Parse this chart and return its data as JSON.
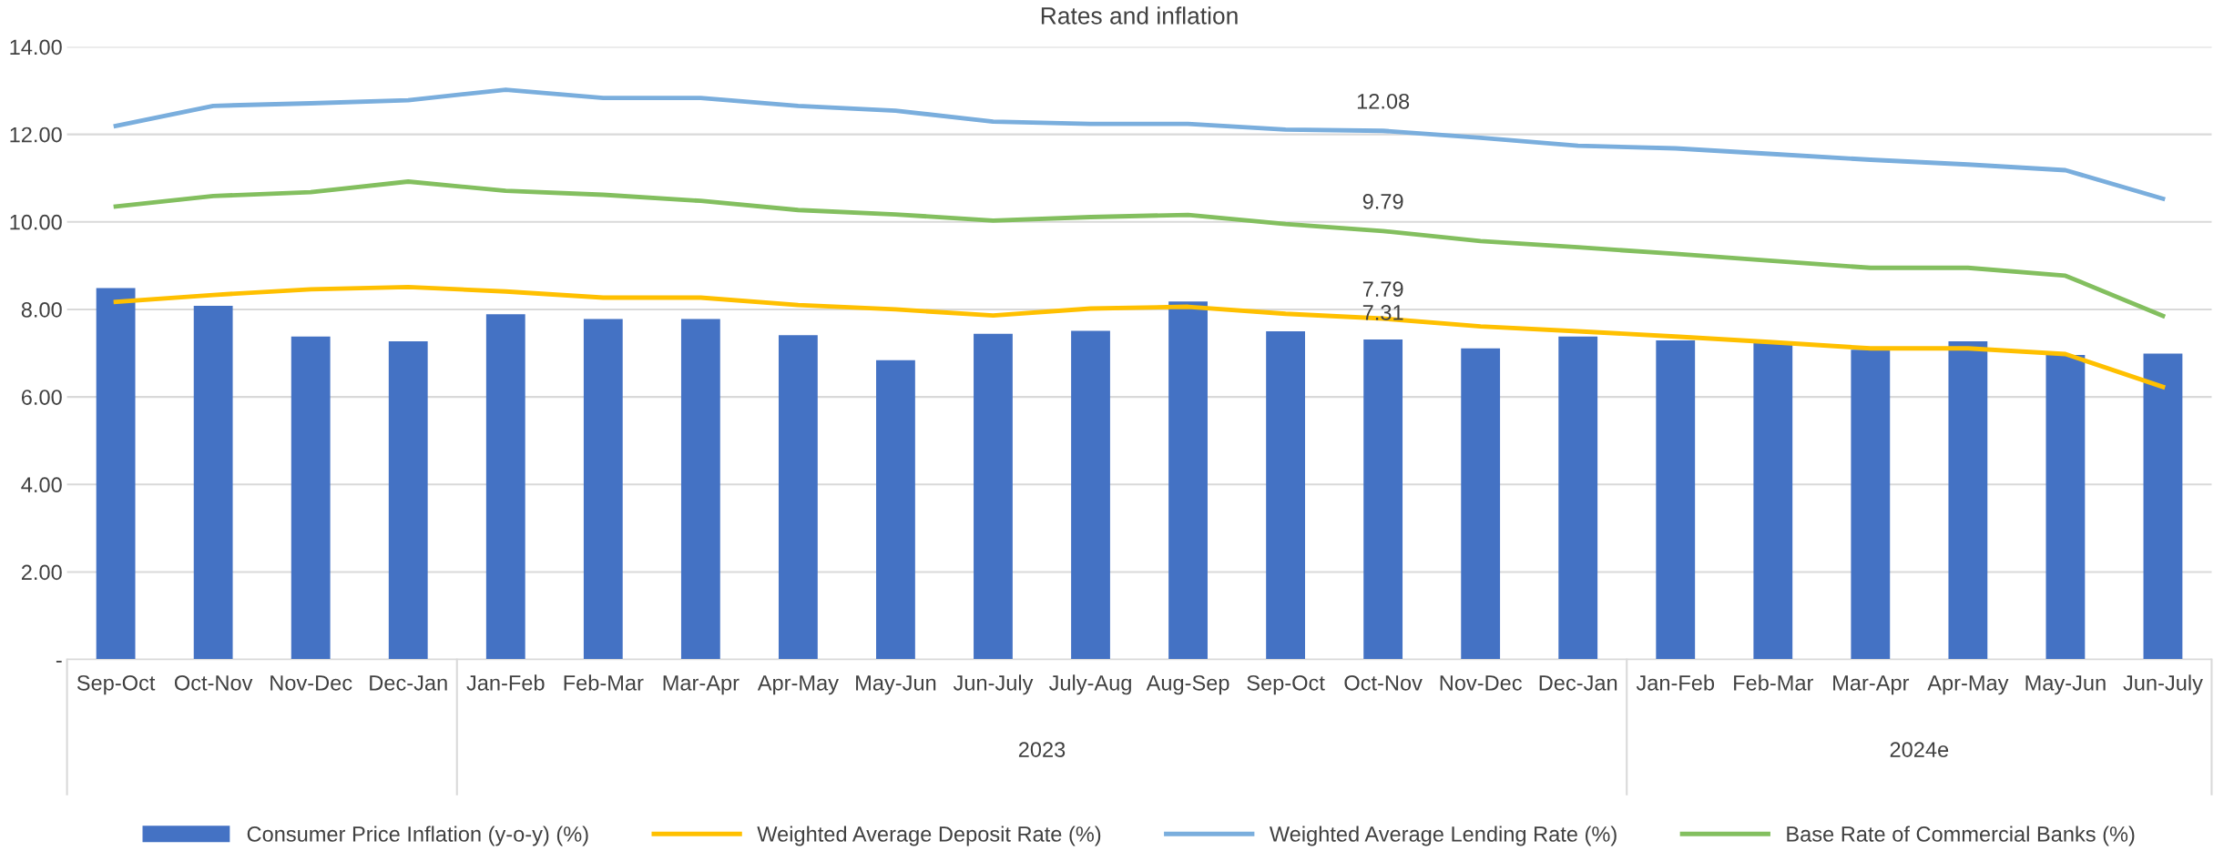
{
  "chart_data": {
    "type": "bar",
    "title": "Rates and inflation",
    "categories": [
      "Sep-Oct",
      "Oct-Nov",
      "Nov-Dec",
      "Dec-Jan",
      "Jan-Feb",
      "Feb-Mar",
      "Mar-Apr",
      "Apr-May",
      "May-Jun",
      "Jun-July",
      "July-Aug",
      "Aug-Sep",
      "Sep-Oct",
      "Oct-Nov",
      "Nov-Dec",
      "Dec-Jan",
      "Jan-Feb",
      "Feb-Mar",
      "Mar-Apr",
      "Apr-May",
      "May-Jun",
      "Jun-July"
    ],
    "series": [
      {
        "name": "Consumer Price Inflation (y-o-y) (%)",
        "color": "#4472c4",
        "values": [
          8.49,
          8.08,
          7.38,
          7.27,
          7.89,
          7.78,
          7.78,
          7.41,
          6.84,
          7.44,
          7.51,
          8.18,
          7.5,
          7.31,
          7.11,
          7.38,
          7.29,
          7.24,
          7.08,
          7.27,
          6.96,
          6.99
        ],
        "value_labels": [
          null,
          null,
          null,
          null,
          null,
          null,
          null,
          null,
          null,
          null,
          null,
          null,
          null,
          "7.31",
          null,
          null,
          null,
          null,
          null,
          null,
          null,
          null
        ]
      },
      {
        "name": "Weighted Average Deposit Rate (%)",
        "type": "line",
        "color": "#ffc000",
        "values": [
          8.17,
          8.33,
          8.46,
          8.51,
          8.41,
          8.27,
          8.27,
          8.1,
          8.0,
          7.86,
          8.02,
          8.06,
          7.9,
          7.79,
          7.61,
          7.5,
          7.38,
          7.25,
          7.11,
          7.11,
          6.98,
          6.23
        ],
        "value_labels": [
          null,
          null,
          null,
          null,
          null,
          null,
          null,
          null,
          null,
          null,
          null,
          null,
          null,
          "7.79",
          null,
          null,
          null,
          null,
          null,
          null,
          null,
          null
        ]
      },
      {
        "name": "Weighted Average Lending Rate (%)",
        "type": "line",
        "color": "#7aaedd",
        "values": [
          12.19,
          12.65,
          12.71,
          12.78,
          13.02,
          12.83,
          12.83,
          12.65,
          12.54,
          12.29,
          12.24,
          12.24,
          12.11,
          12.08,
          11.92,
          11.74,
          11.68,
          11.55,
          11.42,
          11.31,
          11.18,
          10.53
        ],
        "value_labels": [
          null,
          null,
          null,
          null,
          null,
          null,
          null,
          null,
          null,
          null,
          null,
          null,
          null,
          "12.08",
          null,
          null,
          null,
          null,
          null,
          null,
          null,
          null
        ]
      },
      {
        "name": "Base Rate of Commercial Banks (%)",
        "type": "line",
        "color": "#83bf5f",
        "values": [
          10.35,
          10.59,
          10.68,
          10.92,
          10.71,
          10.62,
          10.48,
          10.27,
          10.17,
          10.03,
          10.11,
          10.16,
          9.95,
          9.79,
          9.56,
          9.42,
          9.27,
          9.11,
          8.95,
          8.95,
          8.77,
          7.85
        ],
        "value_labels": [
          null,
          null,
          null,
          null,
          null,
          null,
          null,
          null,
          null,
          null,
          null,
          null,
          null,
          "9.79",
          null,
          null,
          null,
          null,
          null,
          null,
          null,
          null
        ]
      }
    ],
    "annotations": [
      "2023",
      "2024e"
    ],
    "ylim": [
      0,
      14
    ],
    "yticks": [
      {
        "value": 0,
        "label": "-"
      },
      {
        "value": 2,
        "label": "2.00"
      },
      {
        "value": 4,
        "label": "4.00"
      },
      {
        "value": 6,
        "label": "6.00"
      },
      {
        "value": 8,
        "label": "8.00"
      },
      {
        "value": 10,
        "label": "10.00"
      },
      {
        "value": 12,
        "label": "12.00"
      },
      {
        "value": 14,
        "label": "14.00"
      }
    ],
    "grid": "y",
    "legend": "bottom"
  }
}
